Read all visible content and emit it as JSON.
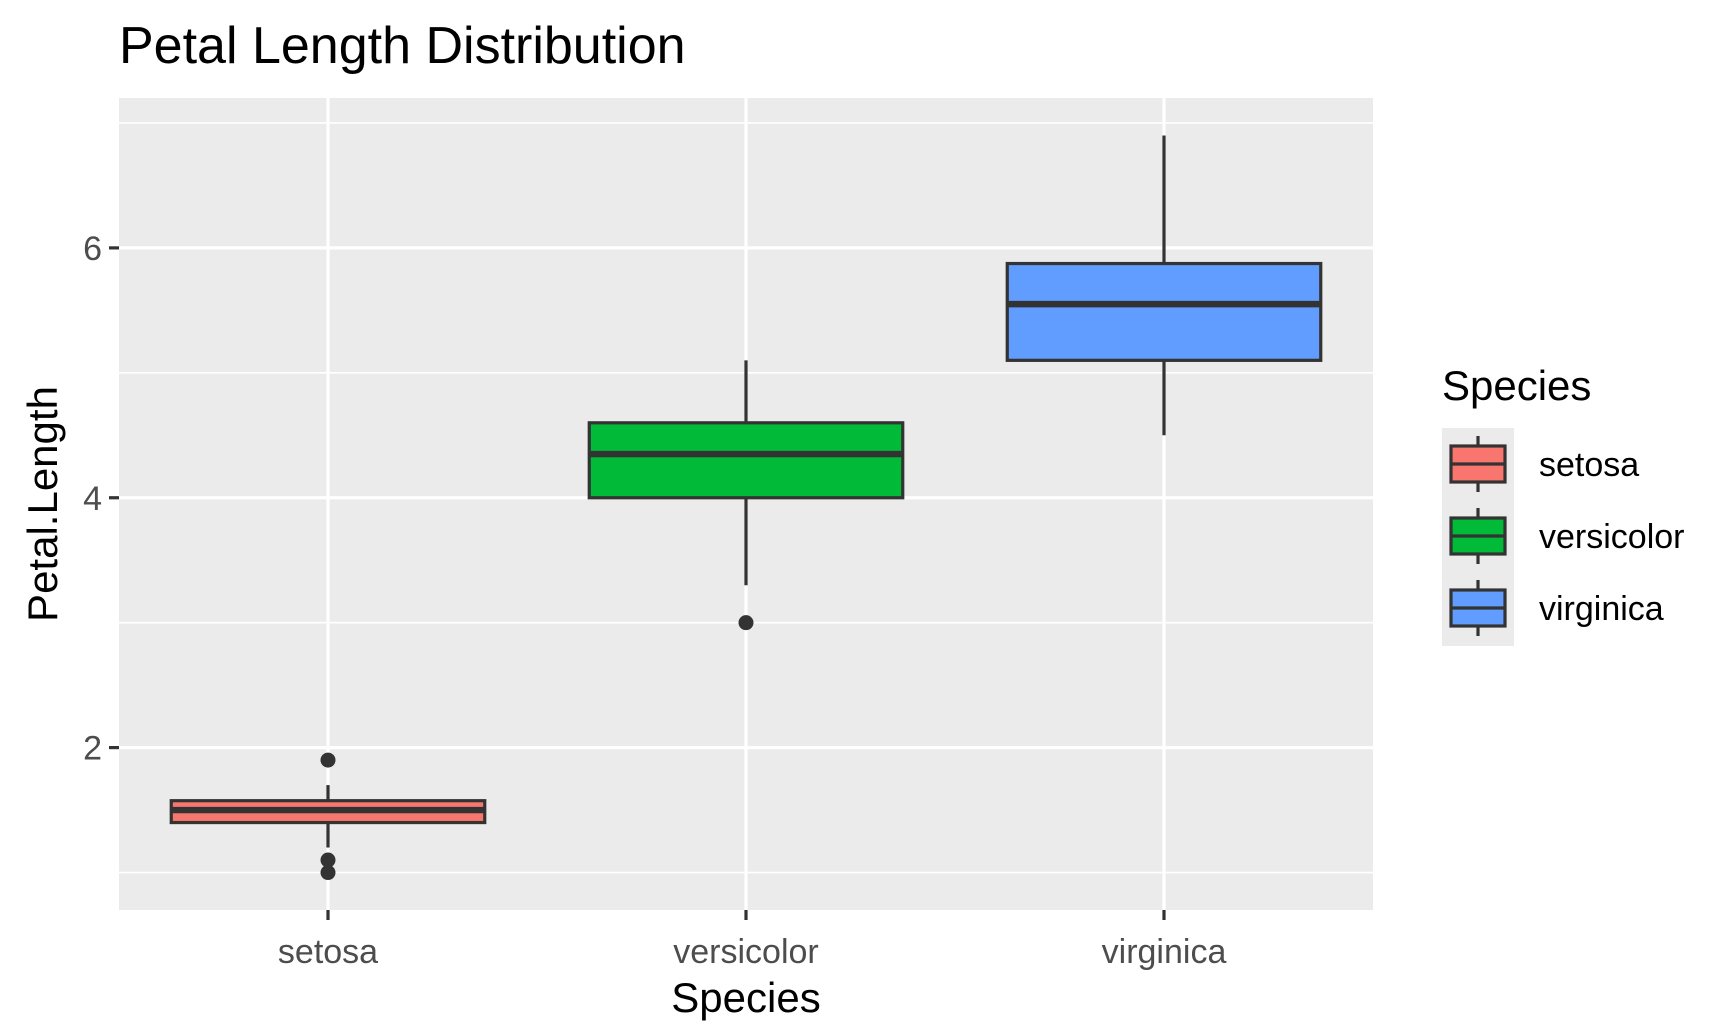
{
  "chart_data": {
    "type": "boxplot",
    "title": "Petal Length Distribution",
    "xlabel": "Species",
    "ylabel": "Petal.Length",
    "categories": [
      "setosa",
      "versicolor",
      "virginica"
    ],
    "ylim": [
      0.7,
      7.2
    ],
    "yticks": [
      2,
      4,
      6
    ],
    "grid": true,
    "legend": {
      "title": "Species",
      "position": "right"
    },
    "series": [
      {
        "name": "setosa",
        "color": "#F8766D",
        "min": 1.2,
        "q1": 1.4,
        "median": 1.5,
        "q3": 1.575,
        "max": 1.7,
        "outliers": [
          1.0,
          1.1,
          1.9
        ]
      },
      {
        "name": "versicolor",
        "color": "#00BA38",
        "min": 3.3,
        "q1": 4.0,
        "median": 4.35,
        "q3": 4.6,
        "max": 5.1,
        "outliers": [
          3.0
        ]
      },
      {
        "name": "virginica",
        "color": "#619CFF",
        "min": 4.5,
        "q1": 5.1,
        "median": 5.55,
        "q3": 5.875,
        "max": 6.9,
        "outliers": []
      }
    ],
    "colors": {
      "panel": "#EBEBEB",
      "grid": "#FFFFFF",
      "box_line": "#333333",
      "tick_text": "#4D4D4D",
      "tick_mark": "#333333"
    }
  }
}
